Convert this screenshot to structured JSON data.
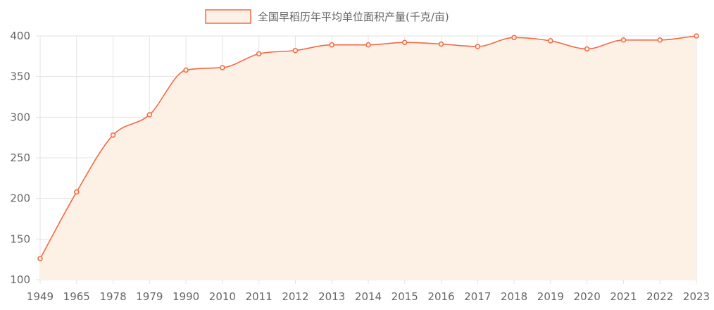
{
  "chart_data": {
    "type": "line",
    "categories": [
      "1949",
      "1965",
      "1978",
      "1979",
      "1990",
      "2010",
      "2011",
      "2012",
      "2013",
      "2014",
      "2015",
      "2016",
      "2017",
      "2018",
      "2019",
      "2020",
      "2021",
      "2022",
      "2023"
    ],
    "series": [
      {
        "name": "全国早稻历年平均单位面积产量(千克/亩)",
        "values": [
          126,
          208,
          278,
          303,
          358,
          361,
          378,
          382,
          389,
          389,
          392,
          390,
          387,
          398,
          394,
          384,
          395,
          395,
          400
        ]
      }
    ],
    "ylim": [
      100,
      400
    ],
    "yticks": [
      100,
      150,
      200,
      250,
      300,
      350,
      400
    ],
    "grid": true,
    "legend_position": "top-center",
    "fill_area": true,
    "smooth": true
  },
  "colors": {
    "line": "#f26a47",
    "fill": "#fdf0e4",
    "grid": "#e3e3e3",
    "axis_text": "#666666"
  }
}
